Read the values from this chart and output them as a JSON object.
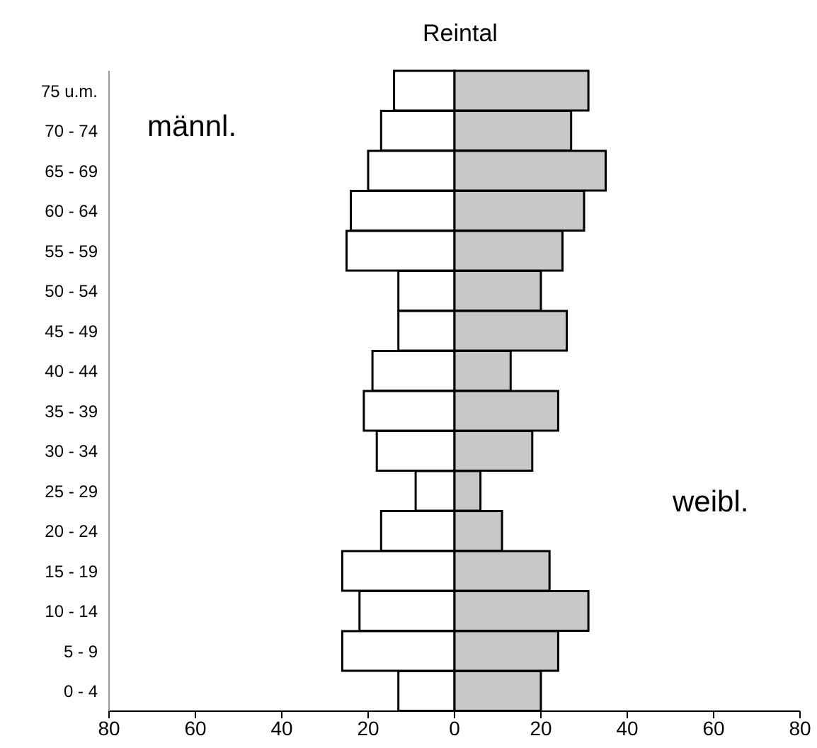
{
  "chart_data": {
    "type": "bar",
    "title": "Reintal",
    "orientation": "horizontal",
    "stacked": true,
    "categories": [
      "75 u.m.",
      "70 - 74",
      "65 - 69",
      "60 - 64",
      "55 - 59",
      "50 - 54",
      "45 - 49",
      "40 - 44",
      "35 - 39",
      "30 - 34",
      "25 - 29",
      "20 - 24",
      "15 - 19",
      "10 - 14",
      "5 - 9",
      "0 - 4"
    ],
    "annotations": [
      "männl.",
      "weibl."
    ],
    "series": [
      {
        "color": "#ffffff",
        "values": [
          -14,
          -17,
          -20,
          -24,
          -25,
          -13,
          -13,
          -19,
          -21,
          -18,
          -9,
          -17,
          -26,
          -22,
          -26,
          -13
        ]
      },
      {
        "color": "#c8c8c8",
        "values": [
          31,
          27,
          35,
          30,
          25,
          20,
          26,
          13,
          24,
          18,
          6,
          11,
          22,
          31,
          24,
          20
        ]
      }
    ],
    "xlim": [
      -80,
      80
    ],
    "xticks": [
      {
        "value": -80,
        "label": "80"
      },
      {
        "value": -60,
        "label": "60"
      },
      {
        "value": -40,
        "label": "40"
      },
      {
        "value": -20,
        "label": "20"
      },
      0,
      20,
      40,
      60,
      80
    ]
  }
}
